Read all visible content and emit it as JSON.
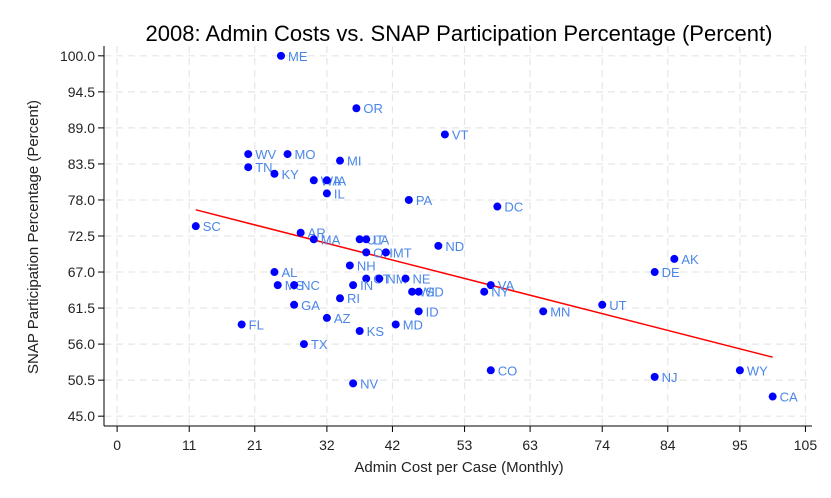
{
  "chart_data": {
    "type": "scatter",
    "title": "2008: Admin Costs vs. SNAP Participation Percentage (Percent)",
    "xlabel": "Admin Cost per Case (Monthly)",
    "ylabel": "SNAP Participation Percentage (Percent)",
    "xlim": [
      -2,
      106
    ],
    "ylim": [
      43.5,
      101.5
    ],
    "xticks": [
      "0",
      "11",
      "21",
      "32",
      "42",
      "53",
      "63",
      "74",
      "84",
      "95",
      "105"
    ],
    "yticks": [
      "45.0",
      "50.5",
      "56.0",
      "61.5",
      "67.0",
      "72.5",
      "78.0",
      "83.5",
      "89.0",
      "94.5",
      "100.0"
    ],
    "grid": true,
    "colors": {
      "point": "#0000ff",
      "label": "#4a86e8",
      "fit": "#ff0000",
      "grid": "#e6e6e6"
    },
    "fit_line": {
      "x": [
        12,
        100
      ],
      "y": [
        76.5,
        54
      ]
    },
    "points": [
      {
        "label": "ME",
        "x": 25,
        "y": 100
      },
      {
        "label": "OR",
        "x": 36.5,
        "y": 92
      },
      {
        "label": "VT",
        "x": 50,
        "y": 88
      },
      {
        "label": "WV",
        "x": 20,
        "y": 85
      },
      {
        "label": "MO",
        "x": 26,
        "y": 85
      },
      {
        "label": "MI",
        "x": 34,
        "y": 84
      },
      {
        "label": "TN",
        "x": 20,
        "y": 83
      },
      {
        "label": "KY",
        "x": 24,
        "y": 82
      },
      {
        "label": "WA",
        "x": 30,
        "y": 81
      },
      {
        "label": "IA",
        "x": 32,
        "y": 81
      },
      {
        "label": "IL",
        "x": 32,
        "y": 79
      },
      {
        "label": "PA",
        "x": 44.5,
        "y": 78
      },
      {
        "label": "DC",
        "x": 58,
        "y": 77
      },
      {
        "label": "SC",
        "x": 12,
        "y": 74
      },
      {
        "label": "AR",
        "x": 28,
        "y": 73
      },
      {
        "label": "MA",
        "x": 30,
        "y": 72
      },
      {
        "label": "UT",
        "x": 37,
        "y": 72
      },
      {
        "label": "LA",
        "x": 38,
        "y": 72
      },
      {
        "label": "ND",
        "x": 49,
        "y": 71
      },
      {
        "label": "OH",
        "x": 38,
        "y": 70
      },
      {
        "label": "MT",
        "x": 41,
        "y": 70
      },
      {
        "label": "AK",
        "x": 85,
        "y": 69
      },
      {
        "label": "NH",
        "x": 35.5,
        "y": 68
      },
      {
        "label": "AL",
        "x": 24,
        "y": 67
      },
      {
        "label": "DE",
        "x": 82,
        "y": 67
      },
      {
        "label": "CT",
        "x": 38,
        "y": 66
      },
      {
        "label": "NM",
        "x": 40,
        "y": 66
      },
      {
        "label": "NE",
        "x": 44,
        "y": 66
      },
      {
        "label": "MS",
        "x": 24.5,
        "y": 65
      },
      {
        "label": "NC",
        "x": 27,
        "y": 65
      },
      {
        "label": "IN",
        "x": 36,
        "y": 65
      },
      {
        "label": "VA",
        "x": 57,
        "y": 65
      },
      {
        "label": "WI",
        "x": 45,
        "y": 64
      },
      {
        "label": "SD",
        "x": 46,
        "y": 64
      },
      {
        "label": "NY",
        "x": 56,
        "y": 64
      },
      {
        "label": "RI",
        "x": 34,
        "y": 63
      },
      {
        "label": "GA",
        "x": 27,
        "y": 62
      },
      {
        "label": "UT",
        "x": 74,
        "y": 62
      },
      {
        "label": "MN",
        "x": 65,
        "y": 61
      },
      {
        "label": "ID",
        "x": 46,
        "y": 61
      },
      {
        "label": "AZ",
        "x": 32,
        "y": 60
      },
      {
        "label": "FL",
        "x": 19,
        "y": 59
      },
      {
        "label": "MD",
        "x": 42.5,
        "y": 59
      },
      {
        "label": "KS",
        "x": 37,
        "y": 58
      },
      {
        "label": "TX",
        "x": 28.5,
        "y": 56
      },
      {
        "label": "CO",
        "x": 57,
        "y": 52
      },
      {
        "label": "WY",
        "x": 95,
        "y": 52
      },
      {
        "label": "NJ",
        "x": 82,
        "y": 51
      },
      {
        "label": "NV",
        "x": 36,
        "y": 50
      },
      {
        "label": "CA",
        "x": 100,
        "y": 48
      }
    ]
  }
}
